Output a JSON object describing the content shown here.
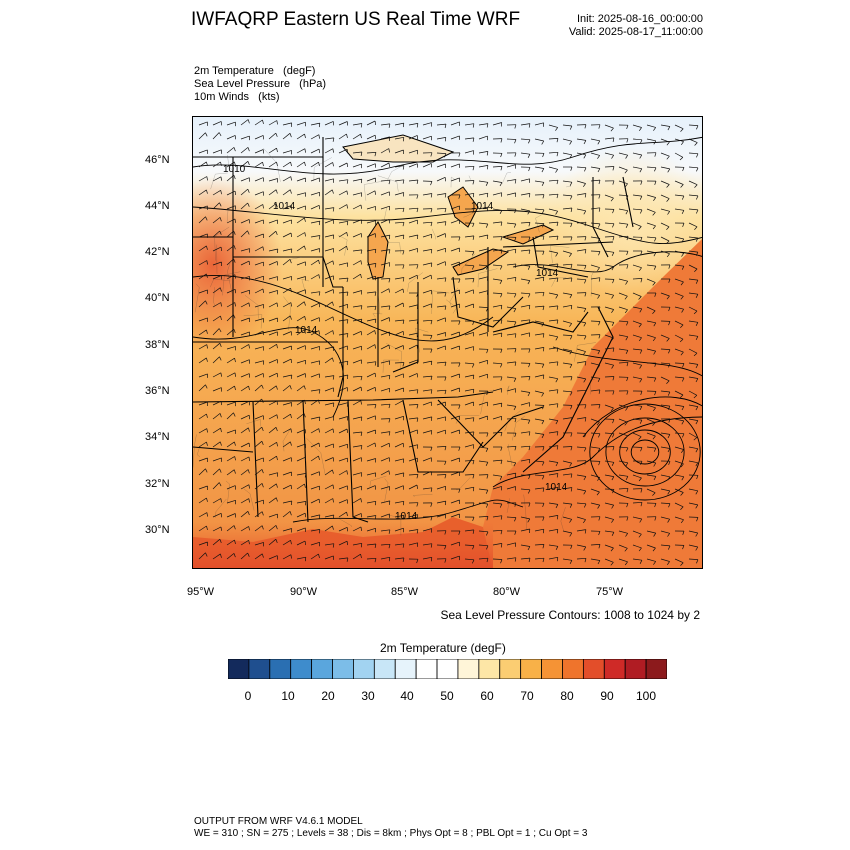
{
  "header": {
    "title": "IWFAQRP Eastern US Real Time WRF",
    "init": "Init: 2025-08-16_00:00:00",
    "valid": "Valid: 2025-08-17_11:00:00"
  },
  "fields": {
    "line1": "2m Temperature   (degF)",
    "line2": "Sea Level Pressure   (hPa)",
    "line3": "10m Winds   (kts)"
  },
  "axes": {
    "lat_labels": [
      "46°N",
      "44°N",
      "42°N",
      "40°N",
      "38°N",
      "36°N",
      "34°N",
      "32°N",
      "30°N"
    ],
    "lon_labels": [
      "95°W",
      "90°W",
      "85°W",
      "80°W",
      "75°W"
    ]
  },
  "map": {
    "isobar_labels": [
      "1010",
      "1014",
      "1014",
      "1014",
      "1014",
      "1014",
      "1014"
    ],
    "colors": {
      "hot": "#e85a30",
      "warm": "#f08c40",
      "mild": "#f8b658",
      "cool": "#fde2a0",
      "cold": "#e6f1fb",
      "water_hot": "#ec6030"
    }
  },
  "slp_note": "Sea Level Pressure Contours: 1008 to 1024 by 2",
  "colorbar": {
    "title": "2m Temperature  (degF)",
    "colors": [
      "#132a5c",
      "#1f4f8f",
      "#2a6fb2",
      "#3e8ccc",
      "#5aa6dd",
      "#7cbde8",
      "#a2d3f1",
      "#c8e6f7",
      "#e6f3fb",
      "#ffffff",
      "#ffffff",
      "#fff5d8",
      "#fde6a6",
      "#fbcd72",
      "#f8b148",
      "#f59335",
      "#ef742c",
      "#e34e2a",
      "#cf2a27",
      "#b01c23",
      "#8c1a1c"
    ],
    "labels": [
      "0",
      "10",
      "20",
      "30",
      "40",
      "50",
      "60",
      "70",
      "80",
      "90",
      "100"
    ]
  },
  "footer": {
    "line1": "OUTPUT FROM WRF V4.6.1 MODEL",
    "line2": "WE = 310 ; SN = 275 ; Levels = 38 ; Dis = 8km ; Phys Opt = 8 ; PBL Opt = 1 ; Cu Opt = 3"
  }
}
